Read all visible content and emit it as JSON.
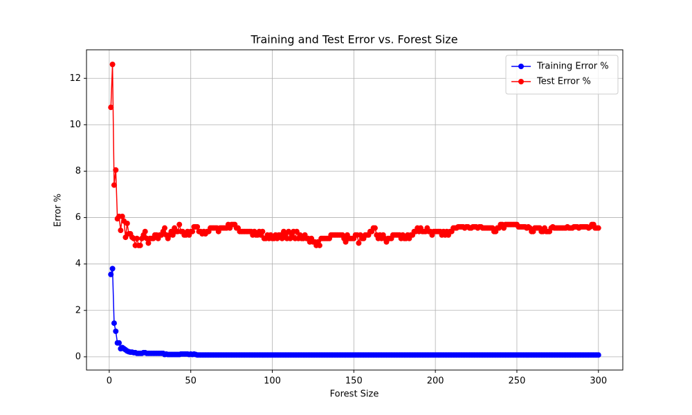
{
  "chart_data": {
    "type": "line",
    "title": "Training and Test Error vs. Forest Size",
    "xlabel": "Forest Size",
    "ylabel": "Error %",
    "x": [
      1,
      2,
      3,
      4,
      5,
      6,
      7,
      8,
      9,
      10,
      11,
      12,
      13,
      14,
      15,
      16,
      17,
      18,
      19,
      20,
      21,
      22,
      23,
      24,
      25,
      26,
      27,
      28,
      29,
      30,
      31,
      32,
      33,
      34,
      35,
      36,
      37,
      38,
      39,
      40,
      41,
      42,
      43,
      44,
      45,
      46,
      47,
      48,
      49,
      50,
      51,
      52,
      53,
      54,
      55,
      56,
      57,
      58,
      59,
      60,
      61,
      62,
      63,
      64,
      65,
      66,
      67,
      68,
      69,
      70,
      71,
      72,
      73,
      74,
      75,
      76,
      77,
      78,
      79,
      80,
      81,
      82,
      83,
      84,
      85,
      86,
      87,
      88,
      89,
      90,
      91,
      92,
      93,
      94,
      95,
      96,
      97,
      98,
      99,
      100,
      101,
      102,
      103,
      104,
      105,
      106,
      107,
      108,
      109,
      110,
      111,
      112,
      113,
      114,
      115,
      116,
      117,
      118,
      119,
      120,
      121,
      122,
      123,
      124,
      125,
      126,
      127,
      128,
      129,
      130,
      131,
      132,
      133,
      134,
      135,
      136,
      137,
      138,
      139,
      140,
      141,
      142,
      143,
      144,
      145,
      146,
      147,
      148,
      149,
      150,
      151,
      152,
      153,
      154,
      155,
      156,
      157,
      158,
      159,
      160,
      161,
      162,
      163,
      164,
      165,
      166,
      167,
      168,
      169,
      170,
      171,
      172,
      173,
      174,
      175,
      176,
      177,
      178,
      179,
      180,
      181,
      182,
      183,
      184,
      185,
      186,
      187,
      188,
      189,
      190,
      191,
      192,
      193,
      194,
      195,
      196,
      197,
      198,
      199,
      200,
      201,
      202,
      203,
      204,
      205,
      206,
      207,
      208,
      209,
      210,
      211,
      212,
      213,
      214,
      215,
      216,
      217,
      218,
      219,
      220,
      221,
      222,
      223,
      224,
      225,
      226,
      227,
      228,
      229,
      230,
      231,
      232,
      233,
      234,
      235,
      236,
      237,
      238,
      239,
      240,
      241,
      242,
      243,
      244,
      245,
      246,
      247,
      248,
      249,
      250,
      251,
      252,
      253,
      254,
      255,
      256,
      257,
      258,
      259,
      260,
      261,
      262,
      263,
      264,
      265,
      266,
      267,
      268,
      269,
      270,
      271,
      272,
      273,
      274,
      275,
      276,
      277,
      278,
      279,
      280,
      281,
      282,
      283,
      284,
      285,
      286,
      287,
      288,
      289,
      290,
      291,
      292,
      293,
      294,
      295,
      296,
      297,
      298,
      299,
      300
    ],
    "series": [
      {
        "name": "Training Error %",
        "color": "#0000ff",
        "values": [
          3.55,
          3.8,
          1.45,
          1.1,
          0.6,
          0.6,
          0.35,
          0.4,
          0.35,
          0.3,
          0.25,
          0.22,
          0.2,
          0.2,
          0.18,
          0.18,
          0.15,
          0.15,
          0.15,
          0.15,
          0.18,
          0.18,
          0.15,
          0.15,
          0.15,
          0.15,
          0.15,
          0.15,
          0.15,
          0.15,
          0.15,
          0.15,
          0.15,
          0.1,
          0.12,
          0.1,
          0.1,
          0.1,
          0.1,
          0.1,
          0.1,
          0.1,
          0.1,
          0.12,
          0.12,
          0.12,
          0.12,
          0.12,
          0.1,
          0.12,
          0.1,
          0.12,
          0.1,
          0.08,
          0.08,
          0.08,
          0.08,
          0.08,
          0.08,
          0.08,
          0.08,
          0.08,
          0.08,
          0.08,
          0.08,
          0.08,
          0.08,
          0.08,
          0.08,
          0.08,
          0.08,
          0.08,
          0.08,
          0.08,
          0.08,
          0.08,
          0.08,
          0.08,
          0.08,
          0.08,
          0.08,
          0.08,
          0.08,
          0.08,
          0.08,
          0.08,
          0.08,
          0.08,
          0.08,
          0.08,
          0.08,
          0.08,
          0.08,
          0.08,
          0.08,
          0.08,
          0.08,
          0.08,
          0.08,
          0.08,
          0.08,
          0.08,
          0.08,
          0.08,
          0.08,
          0.08,
          0.08,
          0.08,
          0.08,
          0.08,
          0.08,
          0.08,
          0.08,
          0.08,
          0.08,
          0.08,
          0.08,
          0.08,
          0.08,
          0.08,
          0.08,
          0.08,
          0.08,
          0.08,
          0.08,
          0.08,
          0.08,
          0.08,
          0.08,
          0.08,
          0.08,
          0.08,
          0.08,
          0.08,
          0.08,
          0.08,
          0.08,
          0.08,
          0.08,
          0.08,
          0.08,
          0.08,
          0.08,
          0.08,
          0.08,
          0.08,
          0.08,
          0.08,
          0.08,
          0.08,
          0.08,
          0.08,
          0.08,
          0.08,
          0.08,
          0.08,
          0.08,
          0.08,
          0.08,
          0.08,
          0.08,
          0.08,
          0.08,
          0.08,
          0.08,
          0.08,
          0.08,
          0.08,
          0.08,
          0.08,
          0.08,
          0.08,
          0.08,
          0.08,
          0.08,
          0.08,
          0.08,
          0.08,
          0.08,
          0.08,
          0.08,
          0.08,
          0.08,
          0.08,
          0.08,
          0.08,
          0.08,
          0.08,
          0.08,
          0.08,
          0.08,
          0.08,
          0.08,
          0.08,
          0.08,
          0.08,
          0.08,
          0.08,
          0.08,
          0.08,
          0.08,
          0.08,
          0.08,
          0.08,
          0.08,
          0.08,
          0.08,
          0.08,
          0.08,
          0.08,
          0.08,
          0.08,
          0.08,
          0.08,
          0.08,
          0.08,
          0.08,
          0.08,
          0.08,
          0.08,
          0.08,
          0.08,
          0.08,
          0.08,
          0.08,
          0.08,
          0.08,
          0.08,
          0.08,
          0.08,
          0.08,
          0.08,
          0.08,
          0.08,
          0.08,
          0.08,
          0.08,
          0.08,
          0.08,
          0.08,
          0.08,
          0.08,
          0.08,
          0.08,
          0.08,
          0.08,
          0.08,
          0.08,
          0.08,
          0.08,
          0.08,
          0.08,
          0.08,
          0.08,
          0.08,
          0.08,
          0.08,
          0.08,
          0.08,
          0.08,
          0.08,
          0.08,
          0.08,
          0.08,
          0.08,
          0.08,
          0.08,
          0.08,
          0.08,
          0.08,
          0.08,
          0.08,
          0.08,
          0.08,
          0.08,
          0.08,
          0.08,
          0.08,
          0.08,
          0.08,
          0.08,
          0.08,
          0.08,
          0.08,
          0.08,
          0.08,
          0.08,
          0.08,
          0.08,
          0.08,
          0.08,
          0.08,
          0.08,
          0.08,
          0.08,
          0.08,
          0.08,
          0.08,
          0.08,
          0.08
        ]
      },
      {
        "name": "Test Error %",
        "color": "#ff0000",
        "values": [
          10.75,
          12.6,
          7.4,
          8.05,
          5.95,
          6.05,
          5.45,
          6.05,
          5.85,
          5.15,
          5.75,
          5.3,
          5.3,
          5.15,
          5.1,
          4.8,
          5.1,
          4.8,
          4.8,
          5.1,
          5.25,
          5.4,
          5.1,
          4.9,
          5.1,
          5.1,
          5.1,
          5.25,
          5.25,
          5.1,
          5.25,
          5.25,
          5.4,
          5.55,
          5.25,
          5.1,
          5.25,
          5.4,
          5.25,
          5.55,
          5.4,
          5.4,
          5.7,
          5.4,
          5.4,
          5.25,
          5.25,
          5.4,
          5.25,
          5.4,
          5.4,
          5.6,
          5.6,
          5.6,
          5.4,
          5.4,
          5.3,
          5.4,
          5.3,
          5.4,
          5.4,
          5.55,
          5.55,
          5.55,
          5.55,
          5.55,
          5.4,
          5.55,
          5.55,
          5.55,
          5.55,
          5.55,
          5.7,
          5.55,
          5.7,
          5.7,
          5.7,
          5.55,
          5.55,
          5.4,
          5.4,
          5.4,
          5.4,
          5.4,
          5.4,
          5.4,
          5.4,
          5.25,
          5.4,
          5.25,
          5.25,
          5.4,
          5.25,
          5.4,
          5.1,
          5.1,
          5.25,
          5.1,
          5.25,
          5.1,
          5.1,
          5.25,
          5.1,
          5.25,
          5.25,
          5.1,
          5.4,
          5.25,
          5.1,
          5.4,
          5.1,
          5.25,
          5.4,
          5.1,
          5.4,
          5.1,
          5.25,
          5.1,
          5.1,
          5.25,
          5.1,
          5.1,
          4.95,
          5.1,
          4.95,
          4.95,
          4.8,
          4.95,
          4.8,
          5.1,
          5.1,
          5.1,
          5.1,
          5.1,
          5.1,
          5.25,
          5.25,
          5.25,
          5.25,
          5.25,
          5.25,
          5.25,
          5.25,
          5.1,
          4.95,
          5.25,
          5.1,
          5.1,
          5.1,
          5.1,
          5.25,
          5.25,
          4.9,
          5.25,
          5.1,
          5.1,
          5.25,
          5.25,
          5.25,
          5.4,
          5.4,
          5.55,
          5.55,
          5.25,
          5.1,
          5.25,
          5.1,
          5.25,
          5.1,
          4.95,
          5.1,
          5.1,
          5.1,
          5.25,
          5.25,
          5.25,
          5.25,
          5.25,
          5.1,
          5.25,
          5.1,
          5.1,
          5.25,
          5.1,
          5.25,
          5.25,
          5.4,
          5.4,
          5.55,
          5.4,
          5.55,
          5.4,
          5.4,
          5.4,
          5.55,
          5.4,
          5.4,
          5.25,
          5.4,
          5.4,
          5.4,
          5.4,
          5.4,
          5.25,
          5.4,
          5.25,
          5.4,
          5.25,
          5.4,
          5.4,
          5.55,
          5.55,
          5.55,
          5.6,
          5.6,
          5.6,
          5.6,
          5.55,
          5.6,
          5.6,
          5.55,
          5.55,
          5.6,
          5.6,
          5.6,
          5.55,
          5.6,
          5.6,
          5.55,
          5.55,
          5.55,
          5.55,
          5.55,
          5.55,
          5.55,
          5.4,
          5.4,
          5.55,
          5.55,
          5.7,
          5.7,
          5.55,
          5.7,
          5.7,
          5.7,
          5.7,
          5.7,
          5.7,
          5.7,
          5.7,
          5.6,
          5.6,
          5.6,
          5.6,
          5.6,
          5.55,
          5.6,
          5.55,
          5.4,
          5.4,
          5.55,
          5.55,
          5.55,
          5.55,
          5.4,
          5.4,
          5.55,
          5.4,
          5.4,
          5.4,
          5.55,
          5.6,
          5.55,
          5.55,
          5.55,
          5.55,
          5.55,
          5.55,
          5.55,
          5.55,
          5.6,
          5.55,
          5.55,
          5.55,
          5.6,
          5.6,
          5.6,
          5.55,
          5.6,
          5.6,
          5.6,
          5.6,
          5.6,
          5.55,
          5.6,
          5.7,
          5.7,
          5.55,
          5.55,
          5.55
        ]
      }
    ],
    "xlim": [
      -13.95,
      314.95
    ],
    "xticks": [
      0,
      50,
      100,
      150,
      200,
      250,
      300
    ],
    "ylim": [
      -0.57,
      13.23
    ],
    "yticks": [
      0,
      2,
      4,
      6,
      8,
      10,
      12
    ],
    "grid": true,
    "legend": "upper right"
  }
}
